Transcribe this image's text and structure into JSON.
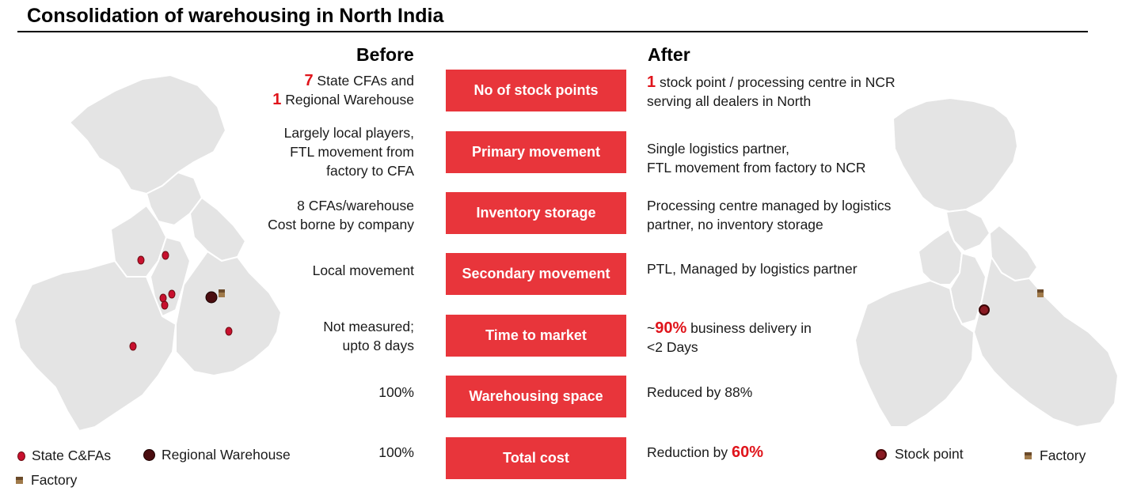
{
  "title": "Consolidation of warehousing in North India",
  "headers": {
    "before": "Before",
    "after": "After"
  },
  "rows": [
    {
      "label": "No of stock points",
      "before": {
        "lines": [
          {
            "num": "7",
            "text": " State  CFAs and"
          },
          {
            "num": "1",
            "text": " Regional Warehouse"
          }
        ]
      },
      "after": {
        "lines": [
          {
            "num": "1",
            "text": " stock point / processing centre in NCR"
          },
          {
            "num": "",
            "text": "serving all dealers in North"
          }
        ]
      }
    },
    {
      "label": "Primary movement",
      "before": {
        "lines": [
          {
            "num": "",
            "text": "Largely local players,"
          },
          {
            "num": "",
            "text": "FTL movement from"
          },
          {
            "num": "",
            "text": "factory to CFA"
          }
        ]
      },
      "after": {
        "lines": [
          {
            "num": "",
            "text": "Single logistics partner,"
          },
          {
            "num": "",
            "text": "FTL movement from factory to NCR"
          }
        ]
      }
    },
    {
      "label": "Inventory storage",
      "before": {
        "lines": [
          {
            "num": "",
            "text": "8 CFAs/warehouse"
          },
          {
            "num": "",
            "text": "Cost borne by company"
          }
        ]
      },
      "after": {
        "lines": [
          {
            "num": "",
            "text": "Processing centre managed by logistics"
          },
          {
            "num": "",
            "text": "partner, no inventory storage"
          }
        ]
      }
    },
    {
      "label": "Secondary movement",
      "before": {
        "lines": [
          {
            "num": "",
            "text": "Local movement"
          }
        ]
      },
      "after": {
        "lines": [
          {
            "num": "",
            "text": "PTL, Managed by logistics partner"
          }
        ]
      }
    },
    {
      "label": "Time to market",
      "before": {
        "lines": [
          {
            "num": "",
            "text": "Not measured;"
          },
          {
            "num": "",
            "text": "upto 8 days"
          }
        ]
      },
      "after": {
        "lines": [
          {
            "pre": "~",
            "num": "90%",
            "text": " business delivery in"
          },
          {
            "num": "",
            "text": "<2 Days"
          }
        ]
      }
    },
    {
      "label": "Warehousing space",
      "before": {
        "lines": [
          {
            "num": "",
            "text": "100%"
          }
        ]
      },
      "after": {
        "lines": [
          {
            "num": "",
            "text": "Reduced by 88%"
          }
        ]
      }
    },
    {
      "label": "Total cost",
      "before": {
        "lines": [
          {
            "num": "",
            "text": "100%"
          }
        ]
      },
      "after": {
        "lines": [
          {
            "pre": "Reduction by ",
            "num": "60%",
            "text": ""
          }
        ]
      }
    }
  ],
  "legend_left": {
    "state_cfa": "State C&FAs",
    "regional": "Regional Warehouse",
    "factory": "Factory"
  },
  "legend_right": {
    "stock_point": "Stock point",
    "factory": "Factory"
  },
  "colors": {
    "accent": "#e8353b",
    "highlight": "#e0141b",
    "map_fill": "#e4e4e4",
    "map_border": "#ffffff",
    "marker": "#c8102e"
  }
}
